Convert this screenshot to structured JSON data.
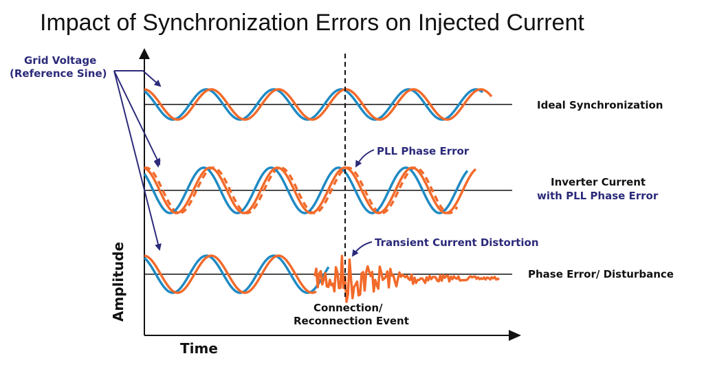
{
  "title": "Impact of Synchronization Errors on Injected Current",
  "reference_label": {
    "line1": "Grid Voltage",
    "line2": "(Reference Sine)"
  },
  "axes": {
    "x_label": "Time",
    "y_label": "Amplitude"
  },
  "rows": [
    {
      "label_line1": "Ideal Synchronization",
      "label_line2": ""
    },
    {
      "label_line1": "Inverter Current",
      "label_line2": "with PLL Phase Error"
    },
    {
      "label_line1": "Phase Error/ Disturbance",
      "label_line2": ""
    }
  ],
  "annotations": {
    "pll_phase_error": "PLL Phase Error",
    "transient_distortion": "Transient Current Distortion",
    "event_line1": "Connection/",
    "event_line2": "Reconnection Event"
  },
  "colors": {
    "grid_voltage": "#1f8ac4",
    "inverter_current": "#f26a2a",
    "annotation_text": "#2b2a7a",
    "axis": "#111111"
  }
}
